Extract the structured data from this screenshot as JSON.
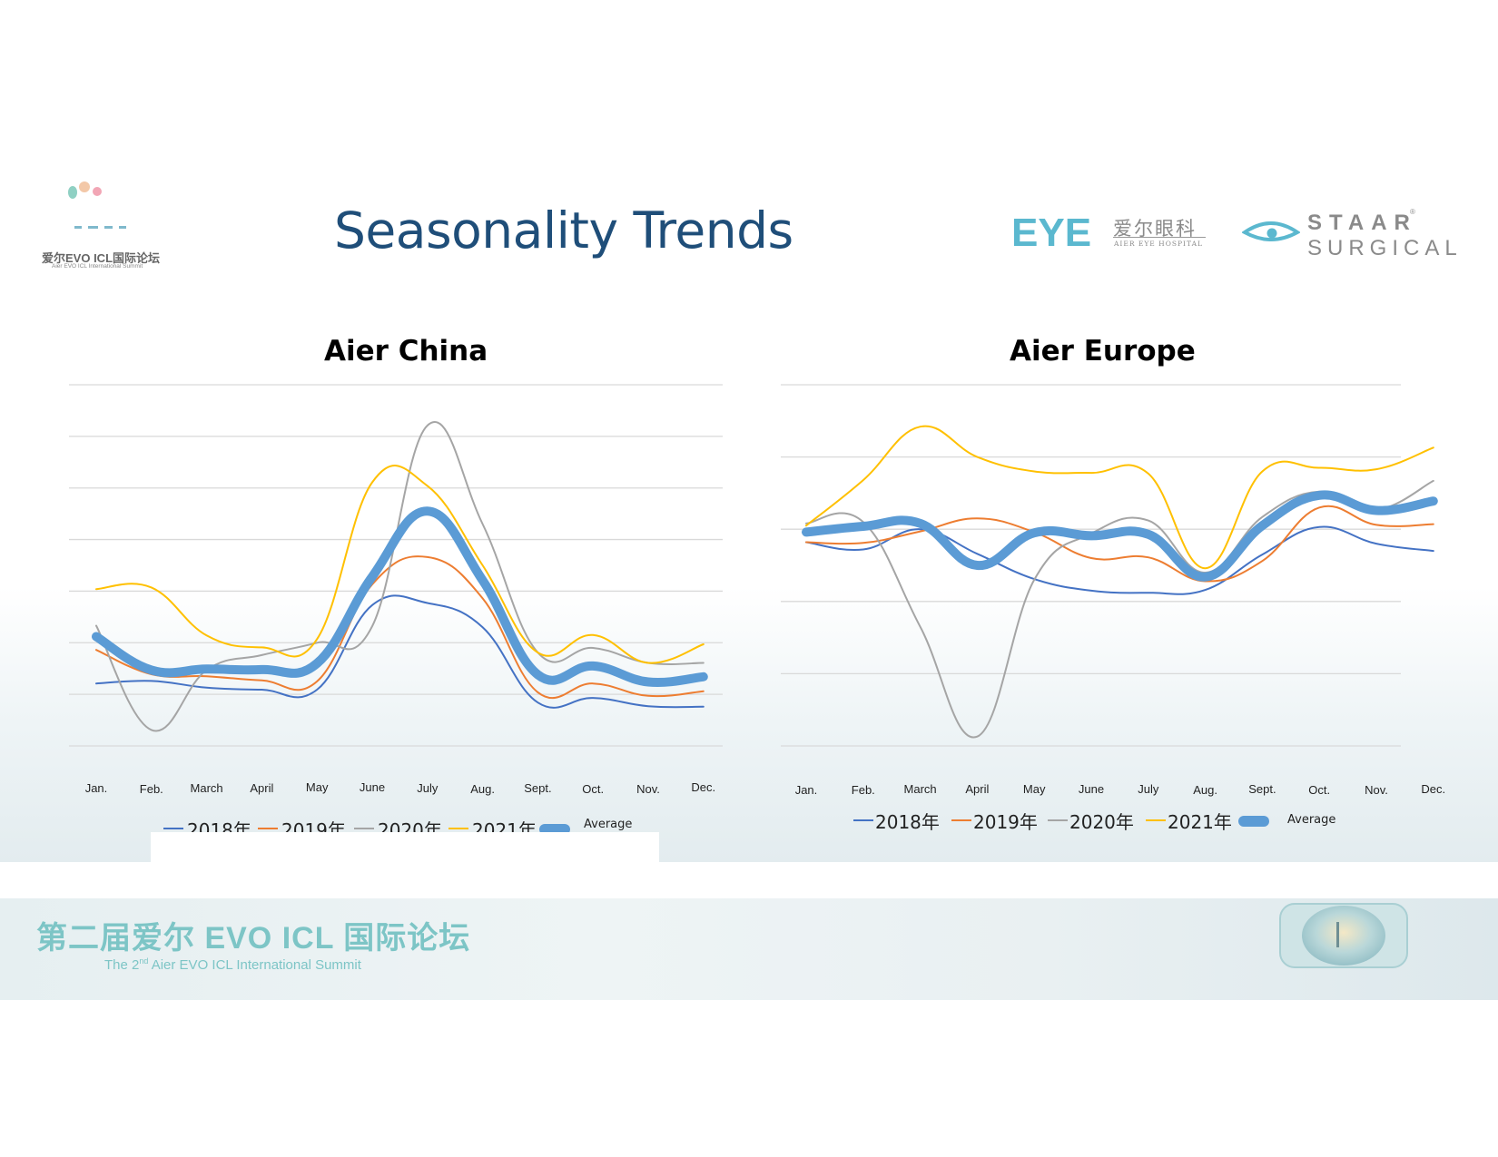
{
  "slide": {
    "title": "Seasonality Trends",
    "logo_left": {
      "cn": "爱尔EVO ICL国际论坛",
      "en": "Aier EVO ICL International Summit"
    },
    "eye_logo": {
      "mark": "EYE",
      "cn": "爱尔眼科",
      "en": "AIER EYE HOSPITAL"
    },
    "staar_logo": {
      "top": "STAAR",
      "bottom": "SURGICAL",
      "reg": "®"
    },
    "banner": {
      "cn": "第二届爱尔 EVO ICL 国际论坛",
      "en_pre": "The 2",
      "en_sup": "nd",
      "en_post": " Aier EVO ICL International Summit"
    }
  },
  "colors": {
    "y2018": "#4472c4",
    "y2019": "#ed7d31",
    "y2020": "#a5a5a5",
    "y2021": "#ffc000",
    "average": "#5b9bd5",
    "title": "#1f4e79",
    "teal": "#7dc5c6"
  },
  "chart_data": [
    {
      "type": "line",
      "title": "Aier China",
      "categories": [
        "Jan.",
        "Feb.",
        "March",
        "April",
        "May",
        "June",
        "July",
        "Aug.",
        "Sept.",
        "Oct.",
        "Nov.",
        "Dec."
      ],
      "ylim": [
        0,
        7
      ],
      "gridlines": 7,
      "y_tick_labels_visible": false,
      "legend_position": "bottom",
      "series": [
        {
          "name": "2018年",
          "values": [
            1.21,
            1.26,
            1.13,
            1.09,
            1.09,
            2.73,
            2.77,
            2.3,
            0.84,
            0.93,
            0.77,
            0.76
          ]
        },
        {
          "name": "2019年",
          "values": [
            1.86,
            1.39,
            1.35,
            1.27,
            1.25,
            3.13,
            3.66,
            2.86,
            1.04,
            1.21,
            0.97,
            1.06
          ]
        },
        {
          "name": "2020年",
          "values": [
            2.33,
            0.31,
            1.47,
            1.76,
            2.0,
            2.32,
            6.21,
            4.3,
            1.81,
            1.9,
            1.61,
            1.61
          ]
        },
        {
          "name": "2021年",
          "values": [
            3.04,
            3.07,
            2.14,
            1.91,
            2.07,
            5.11,
            5.04,
            3.5,
            1.81,
            2.15,
            1.61,
            1.97
          ]
        },
        {
          "name": "Average",
          "values": [
            2.12,
            1.47,
            1.49,
            1.48,
            1.6,
            3.28,
            4.55,
            3.21,
            1.38,
            1.55,
            1.24,
            1.34
          ]
        }
      ]
    },
    {
      "type": "line",
      "title": "Aier Europe",
      "categories": [
        "Jan.",
        "Feb.",
        "March",
        "April",
        "May",
        "June",
        "July",
        "Aug.",
        "Sept.",
        "Oct.",
        "Nov.",
        "Dec."
      ],
      "ylim": [
        0,
        5
      ],
      "gridlines": 5,
      "y_tick_labels_visible": false,
      "legend_position": "bottom",
      "series": [
        {
          "name": "2018年",
          "values": [
            2.82,
            2.72,
            3.0,
            2.66,
            2.31,
            2.15,
            2.12,
            2.16,
            2.65,
            3.03,
            2.8,
            2.7
          ]
        },
        {
          "name": "2019年",
          "values": [
            2.82,
            2.81,
            2.97,
            3.15,
            2.96,
            2.6,
            2.61,
            2.28,
            2.56,
            3.3,
            3.06,
            3.07
          ]
        },
        {
          "name": "2020年",
          "values": [
            3.08,
            3.1,
            1.65,
            0.13,
            2.3,
            2.94,
            3.12,
            2.4,
            3.17,
            3.52,
            3.27,
            3.67
          ]
        },
        {
          "name": "2021年",
          "values": [
            3.05,
            3.68,
            4.42,
            4.0,
            3.8,
            3.78,
            3.77,
            2.46,
            3.8,
            3.85,
            3.83,
            4.13
          ]
        },
        {
          "name": "Average",
          "values": [
            2.96,
            3.04,
            3.08,
            2.5,
            2.95,
            2.91,
            2.93,
            2.34,
            3.05,
            3.47,
            3.26,
            3.39
          ]
        }
      ]
    }
  ]
}
